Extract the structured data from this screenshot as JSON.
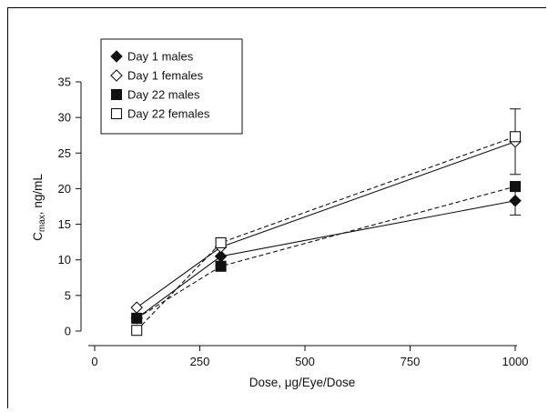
{
  "chart_data": {
    "type": "scatter",
    "title": "",
    "xlabel": "Dose, μg/Eye/Dose",
    "ylabel": "C",
    "ylabel_subscript": "max",
    "ylabel_unit": ", ng/mL",
    "xlim": [
      0,
      1000
    ],
    "ylim": [
      0,
      35
    ],
    "xticks": [
      0,
      250,
      500,
      750,
      1000
    ],
    "yticks": [
      0,
      5,
      10,
      15,
      20,
      25,
      30,
      35
    ],
    "grid": false,
    "legend_position": "top-left",
    "series": [
      {
        "name": "Day 1 males",
        "marker": "diamond-filled",
        "line": "solid",
        "x": [
          100,
          300,
          1000
        ],
        "y": [
          1.8,
          10.5,
          18.3
        ],
        "err": [
          0,
          0,
          2.0
        ]
      },
      {
        "name": "Day 1 females",
        "marker": "diamond-open",
        "line": "solid",
        "x": [
          100,
          300,
          1000
        ],
        "y": [
          3.3,
          11.8,
          26.6
        ],
        "err": [
          0,
          0,
          4.6
        ]
      },
      {
        "name": "Day 22 males",
        "marker": "square-filled",
        "line": "dashed",
        "x": [
          100,
          300,
          1000
        ],
        "y": [
          1.8,
          9.1,
          20.3
        ],
        "err": [
          0,
          0,
          0
        ]
      },
      {
        "name": "Day 22 females",
        "marker": "square-open",
        "line": "dashed",
        "x": [
          100,
          300,
          1000
        ],
        "y": [
          0.1,
          12.4,
          27.3
        ],
        "err": [
          0,
          0.6,
          0
        ]
      }
    ]
  }
}
